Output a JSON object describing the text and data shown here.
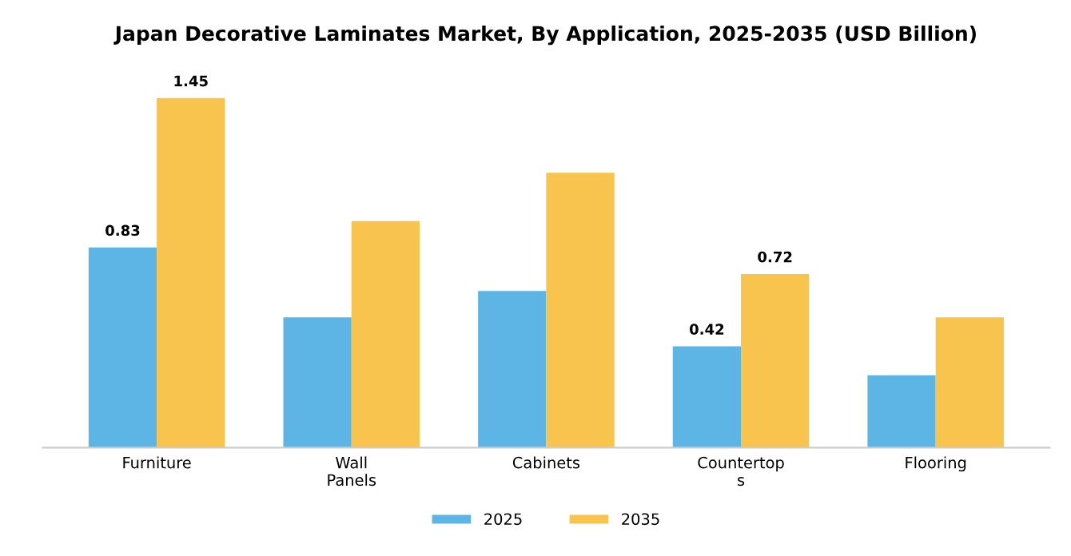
{
  "chart_data": {
    "type": "bar",
    "title": "Japan Decorative Laminates Market, By Application, 2025-2035 (USD Billion)",
    "categories": [
      "Furniture",
      "Wall\nPanels",
      "Cabinets",
      "Countertop\ns",
      "Flooring"
    ],
    "series": [
      {
        "name": "2025",
        "color": "#5db5e6",
        "values": [
          0.83,
          0.54,
          0.65,
          0.42,
          0.3
        ],
        "value_labels": [
          "0.83",
          null,
          null,
          "0.42",
          null
        ]
      },
      {
        "name": "2035",
        "color": "#f8c44e",
        "values": [
          1.45,
          0.94,
          1.14,
          0.72,
          0.54
        ],
        "value_labels": [
          "1.45",
          null,
          null,
          "0.72",
          null
        ]
      }
    ],
    "legend": "bottom",
    "grid": false
  }
}
